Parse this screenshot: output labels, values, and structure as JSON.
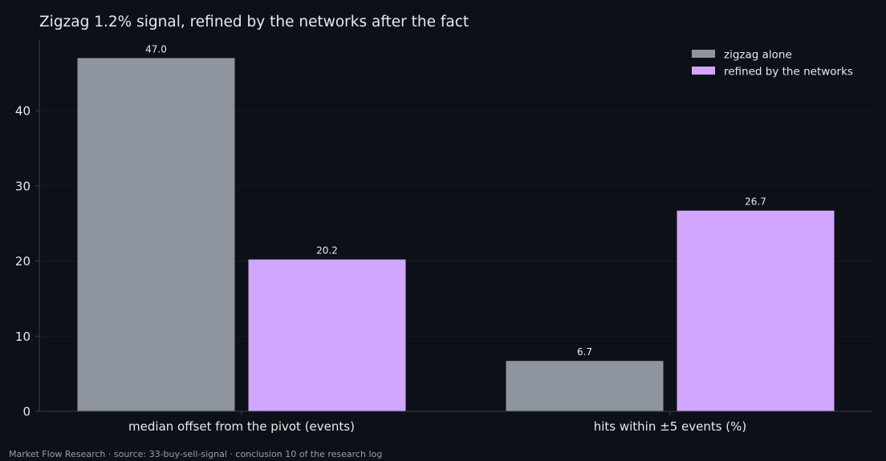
{
  "chart_data": {
    "type": "bar",
    "title": "Zigzag 1.2% signal, refined by the networks after the fact",
    "xlabel": "",
    "ylabel": "",
    "categories": [
      "median offset from the pivot (events)",
      "hits within ±5 events (%)"
    ],
    "series": [
      {
        "name": "zigzag alone",
        "values": [
          47.0,
          6.7
        ],
        "color": "#8e959f"
      },
      {
        "name": "refined by the networks",
        "values": [
          20.2,
          26.7
        ],
        "color": "#d1a6ff"
      }
    ],
    "value_labels": [
      [
        "47.0",
        "6.7"
      ],
      [
        "20.2",
        "26.7"
      ]
    ],
    "ylim": [
      0,
      49.5
    ],
    "yticks": [
      0,
      10,
      20,
      30,
      40
    ],
    "grid": true,
    "legend": "top-right"
  },
  "footer": "Market Flow Research · source: 33-buy-sell-signal · conclusion 10 of the research log",
  "colors": {
    "background": "#0d1017",
    "axis": "#3a3e48",
    "grid": "#161a22"
  }
}
